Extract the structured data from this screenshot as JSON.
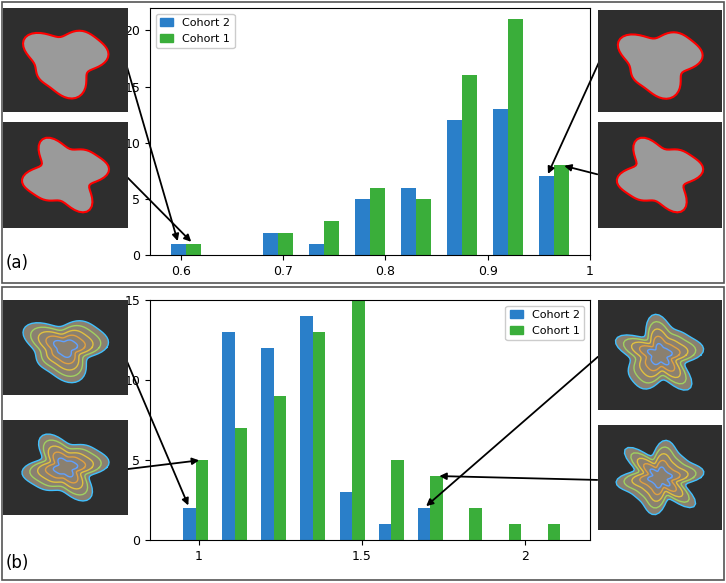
{
  "chart_data": [
    {
      "type": "bar",
      "annotations": [
        "(a)"
      ],
      "legend": "upper left",
      "x": [
        0.605,
        0.65,
        0.695,
        0.74,
        0.785,
        0.83,
        0.875,
        0.92,
        0.965
      ],
      "series": [
        {
          "name": "Cohort 2",
          "color": "#2a7fc9",
          "values": [
            1,
            0,
            2,
            1,
            5,
            6,
            12,
            13,
            7
          ]
        },
        {
          "name": "Cohort 1",
          "color": "#3aae3a",
          "values": [
            1,
            0,
            2,
            3,
            6,
            5,
            16,
            21,
            8
          ]
        }
      ],
      "xlim": [
        0.57,
        1
      ],
      "xticks": [
        0.6,
        0.7,
        0.8,
        0.9,
        1
      ],
      "ylim": [
        0,
        22
      ],
      "yticks": [
        0,
        5,
        10,
        15,
        20
      ]
    },
    {
      "type": "bar",
      "annotations": [
        "(b)"
      ],
      "legend": "upper right",
      "x": [
        0.99,
        1.11,
        1.23,
        1.35,
        1.47,
        1.59,
        1.71,
        1.83,
        1.95,
        2.07
      ],
      "series": [
        {
          "name": "Cohort 2",
          "color": "#2a7fc9",
          "values": [
            2,
            13,
            12,
            14,
            3,
            1,
            2,
            0,
            0,
            0
          ]
        },
        {
          "name": "Cohort 1",
          "color": "#3aae3a",
          "values": [
            5,
            7,
            9,
            13,
            15,
            5,
            4,
            2,
            1,
            1
          ]
        }
      ],
      "xlim": [
        0.85,
        2.2
      ],
      "xticks": [
        1,
        1.5,
        2
      ],
      "ylim": [
        0,
        15
      ],
      "yticks": [
        0,
        5,
        10,
        15
      ]
    }
  ]
}
